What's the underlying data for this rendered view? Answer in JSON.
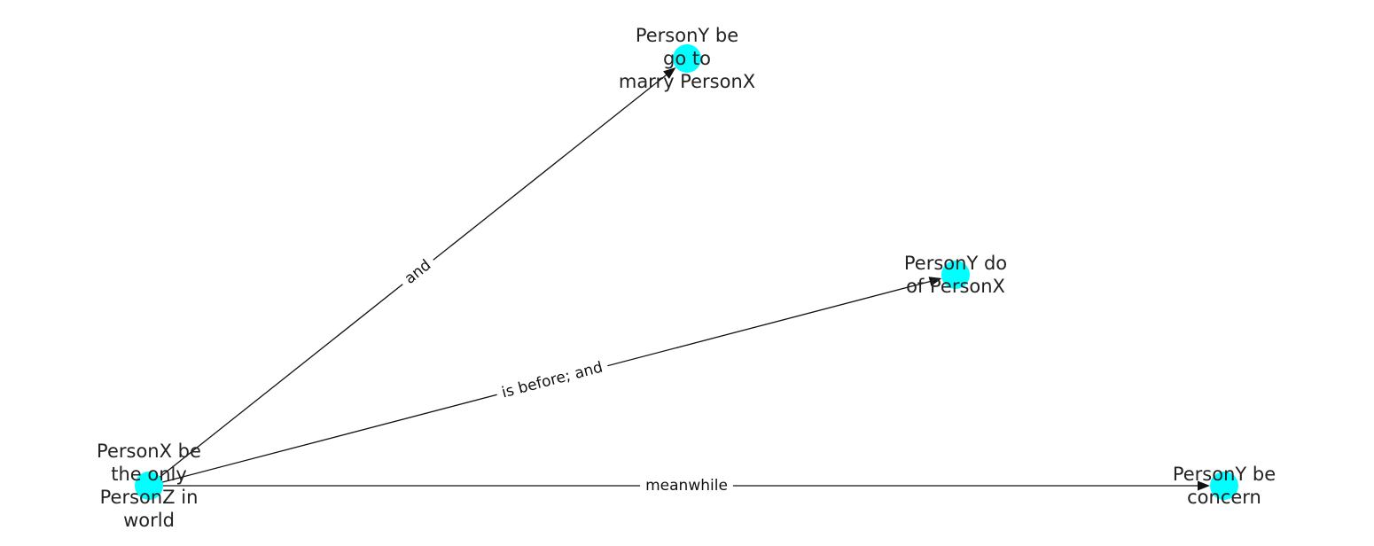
{
  "diagram": {
    "node_color": "#00ffff",
    "edge_color": "#111111",
    "nodes": [
      {
        "id": "n1",
        "label_lines": [
          "PersonX be",
          "the only",
          "PersonZ in",
          "world"
        ]
      },
      {
        "id": "n2",
        "label_lines": [
          "PersonY be",
          "go to",
          "marry PersonX"
        ]
      },
      {
        "id": "n3",
        "label_lines": [
          "PersonY do",
          "of PersonX"
        ]
      },
      {
        "id": "n4",
        "label_lines": [
          "PersonY be",
          "concern"
        ]
      }
    ],
    "edges": [
      {
        "source": "n1",
        "target": "n2",
        "label": "and"
      },
      {
        "source": "n1",
        "target": "n3",
        "label": "is before;  and"
      },
      {
        "source": "n1",
        "target": "n4",
        "label": "meanwhile"
      }
    ]
  }
}
